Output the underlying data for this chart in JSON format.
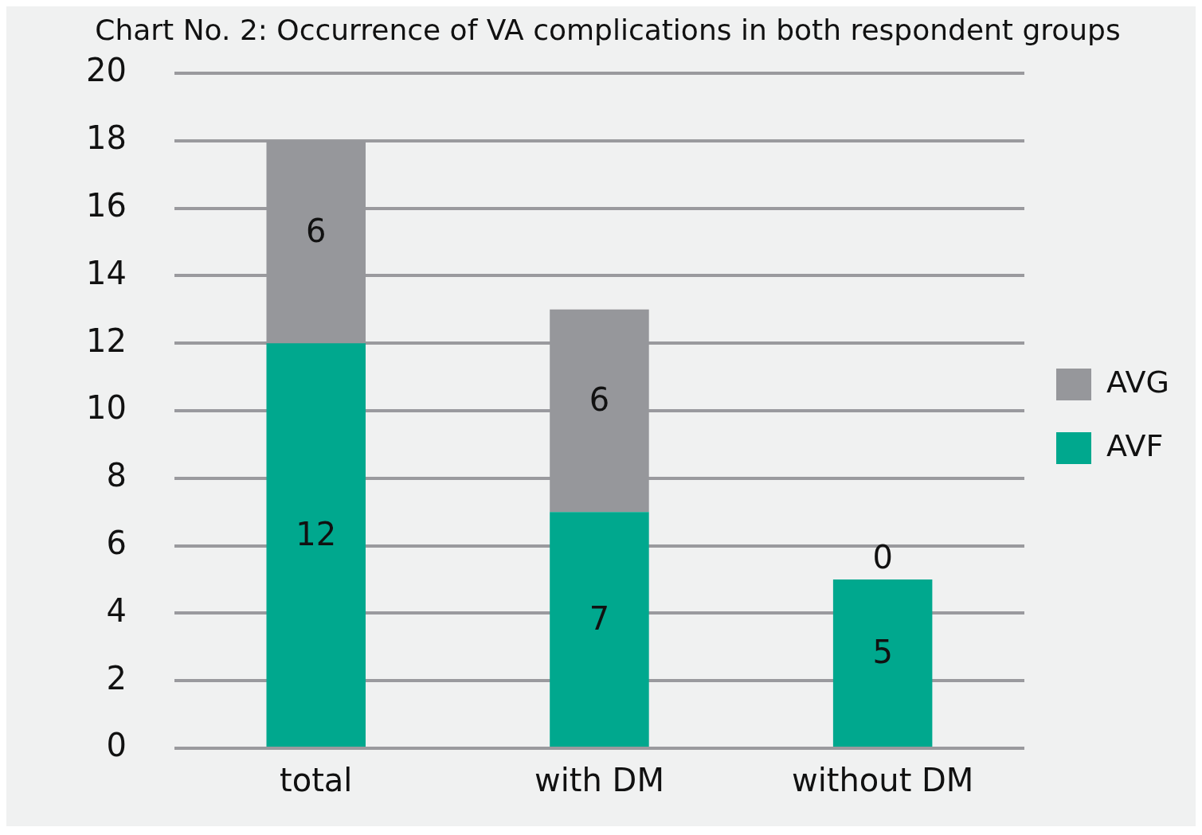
{
  "chart_data": {
    "type": "bar",
    "title": "Chart No. 2: Occurrence of VA complications in both respondent groups",
    "categories": [
      "total",
      "with DM",
      "without DM"
    ],
    "stacked": true,
    "series": [
      {
        "name": "AVF",
        "color": "#00a88e",
        "values": [
          12,
          7,
          5
        ]
      },
      {
        "name": "AVG",
        "color": "#96979b",
        "values": [
          6,
          6,
          0
        ]
      }
    ],
    "ylim": [
      0,
      20
    ],
    "yticks": [
      0,
      2,
      4,
      6,
      8,
      10,
      12,
      14,
      16,
      18,
      20
    ],
    "grid": "y",
    "legend": "right",
    "data_labels": true
  }
}
